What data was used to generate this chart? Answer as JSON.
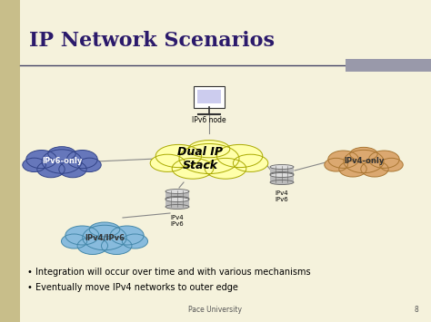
{
  "title": "IP Network Scenarios",
  "bg_color": "#f5f2dc",
  "left_bar_color": "#c8be8a",
  "title_color": "#2b1a6b",
  "title_fontsize": 16,
  "bullet1": "Integration will occur over time and with various mechanisms",
  "bullet2": "Eventually move IPv4 networks to outer edge",
  "footer": "Pace University",
  "page_num": "8",
  "dual_stack_color": "#ffffaa",
  "dual_stack_border": "#aaaa00",
  "dual_stack_label": "Dual IP\nStack",
  "ipv6only_color": "#6677bb",
  "ipv6only_border": "#334488",
  "ipv6only_label": "IPv6-only",
  "ipv4only_color": "#dba870",
  "ipv4only_border": "#aa7733",
  "ipv4only_label": "IPv4-only",
  "ipv4ipv6_color": "#88bbdd",
  "ipv4ipv6_border": "#4488aa",
  "ipv4ipv6_label": "IPv4/IPv6",
  "router_color": "#bbbbbb",
  "router_border": "#666666",
  "router1_label": "IPv4\nIPv6",
  "router2_label": "IPv4\nIPv6",
  "node_label": "IPv6 node",
  "line_color": "#888888",
  "separator_color": "#444466",
  "gray_bar_color": "#9999aa"
}
